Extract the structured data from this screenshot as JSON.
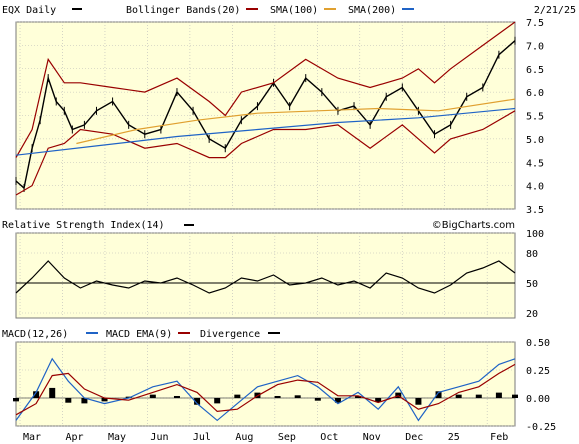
{
  "header": {
    "title": "EQX Daily",
    "indicators": [
      {
        "label": "Bollinger Bands(20)",
        "color": "#990000"
      },
      {
        "label": "SMA(100)",
        "color": "#e0a030"
      },
      {
        "label": "SMA(200)",
        "color": "#1f63c6"
      }
    ],
    "date": "2/21/25"
  },
  "colors": {
    "plot_bg": "#ffffd9",
    "bollinger": "#990000",
    "sma100": "#e0a030",
    "sma200": "#1f63c6",
    "price": "#000000",
    "macd": "#1f63c6",
    "macd_ema": "#990000"
  },
  "rsi_title": "Relative Strength Index(14)",
  "watermark": "©BigCharts.com",
  "macd_panel": {
    "title": "MACD(12,26)",
    "ema_label": "MACD EMA(9)",
    "divergence_label": "Divergence"
  },
  "x_labels": [
    "Mar",
    "Apr",
    "May",
    "Jun",
    "Jul",
    "Aug",
    "Sep",
    "Oct",
    "Nov",
    "Dec",
    "25",
    "Feb"
  ],
  "chart_data": [
    {
      "type": "line",
      "panel": "price",
      "ylim": [
        3.5,
        7.5
      ],
      "y_ticks": [
        "3.5",
        "4.0",
        "4.5",
        "5.0",
        "5.5",
        "6.0",
        "6.5",
        "7.0",
        "7.5"
      ],
      "series": [
        {
          "name": "EQX Daily",
          "x": [
            0,
            4,
            8,
            12,
            16,
            20,
            24,
            28,
            34,
            40,
            48,
            56,
            64,
            72,
            80,
            88,
            96,
            104,
            112,
            120,
            128,
            136,
            144,
            152,
            160,
            168,
            176,
            184,
            192,
            200,
            208,
            216,
            224,
            232,
            240,
            248
          ],
          "values": [
            4.1,
            3.95,
            4.8,
            5.4,
            6.3,
            5.8,
            5.6,
            5.2,
            5.3,
            5.6,
            5.8,
            5.3,
            5.1,
            5.2,
            6.0,
            5.6,
            5.0,
            4.8,
            5.4,
            5.7,
            6.2,
            5.7,
            6.3,
            6.0,
            5.6,
            5.7,
            5.3,
            5.9,
            6.1,
            5.6,
            5.1,
            5.3,
            5.9,
            6.1,
            6.8,
            7.1
          ]
        },
        {
          "name": "Bollinger Bands(20)",
          "x": [
            0,
            8,
            16,
            24,
            32,
            48,
            64,
            80,
            96,
            104,
            112,
            128,
            144,
            160,
            176,
            192,
            200,
            208,
            216,
            232,
            248
          ],
          "values": [
            4.6,
            5.2,
            6.7,
            6.2,
            6.2,
            6.1,
            6.0,
            6.3,
            5.8,
            5.5,
            6.0,
            6.2,
            6.7,
            6.3,
            6.1,
            6.3,
            6.5,
            6.2,
            6.5,
            7.0,
            7.5
          ]
        },
        {
          "name": "Bollinger Bands(20)",
          "x": [
            0,
            8,
            16,
            24,
            32,
            48,
            64,
            80,
            96,
            104,
            112,
            128,
            144,
            160,
            176,
            192,
            200,
            208,
            216,
            232,
            248
          ],
          "values": [
            3.8,
            4.0,
            4.8,
            4.9,
            5.2,
            5.1,
            4.8,
            4.9,
            4.6,
            4.6,
            4.9,
            5.2,
            5.2,
            5.3,
            4.8,
            5.3,
            5.0,
            4.7,
            5.0,
            5.2,
            5.6
          ]
        },
        {
          "name": "SMA(100)",
          "x": [
            30,
            60,
            90,
            120,
            150,
            180,
            210,
            248
          ],
          "values": [
            4.9,
            5.2,
            5.4,
            5.55,
            5.6,
            5.65,
            5.6,
            5.85
          ]
        },
        {
          "name": "SMA(200)",
          "x": [
            0,
            40,
            80,
            120,
            160,
            200,
            248
          ],
          "values": [
            4.65,
            4.85,
            5.05,
            5.2,
            5.35,
            5.45,
            5.65
          ]
        }
      ]
    },
    {
      "type": "line",
      "panel": "rsi",
      "ylim": [
        15,
        100
      ],
      "y_ticks": [
        "100",
        "80",
        "50",
        "20"
      ],
      "reference_line": 50,
      "series": [
        {
          "name": "Relative Strength Index(14)",
          "x": [
            0,
            8,
            16,
            24,
            32,
            40,
            48,
            56,
            64,
            72,
            80,
            88,
            96,
            104,
            112,
            120,
            128,
            136,
            144,
            152,
            160,
            168,
            176,
            184,
            192,
            200,
            208,
            216,
            224,
            232,
            240,
            248
          ],
          "values": [
            40,
            55,
            72,
            55,
            45,
            52,
            48,
            45,
            52,
            50,
            55,
            48,
            40,
            45,
            55,
            52,
            58,
            48,
            50,
            55,
            48,
            52,
            45,
            60,
            55,
            45,
            40,
            48,
            60,
            65,
            72,
            60
          ]
        }
      ]
    },
    {
      "type": "line",
      "panel": "macd",
      "ylim": [
        -0.25,
        0.5
      ],
      "y_ticks": [
        "0.50",
        "0.25",
        "0.00",
        "-0.25"
      ],
      "series": [
        {
          "name": "MACD(12,26)",
          "x": [
            0,
            10,
            18,
            26,
            34,
            44,
            56,
            68,
            80,
            90,
            100,
            110,
            120,
            130,
            140,
            150,
            160,
            170,
            180,
            190,
            200,
            210,
            220,
            230,
            240,
            248
          ],
          "values": [
            -0.2,
            0.05,
            0.35,
            0.15,
            0.0,
            -0.05,
            0.0,
            0.1,
            0.15,
            -0.05,
            -0.2,
            -0.05,
            0.1,
            0.15,
            0.2,
            0.1,
            -0.05,
            0.05,
            -0.1,
            0.1,
            -0.2,
            0.05,
            0.1,
            0.15,
            0.3,
            0.35
          ]
        },
        {
          "name": "MACD EMA(9)",
          "x": [
            0,
            10,
            18,
            26,
            34,
            44,
            56,
            68,
            80,
            90,
            100,
            110,
            120,
            130,
            140,
            150,
            160,
            170,
            180,
            190,
            200,
            210,
            220,
            230,
            240,
            248
          ],
          "values": [
            -0.15,
            -0.05,
            0.2,
            0.22,
            0.08,
            0.0,
            -0.02,
            0.05,
            0.12,
            0.05,
            -0.12,
            -0.1,
            0.02,
            0.12,
            0.16,
            0.14,
            0.02,
            0.02,
            -0.04,
            0.02,
            -0.1,
            -0.05,
            0.05,
            0.1,
            0.22,
            0.3
          ]
        }
      ]
    }
  ]
}
